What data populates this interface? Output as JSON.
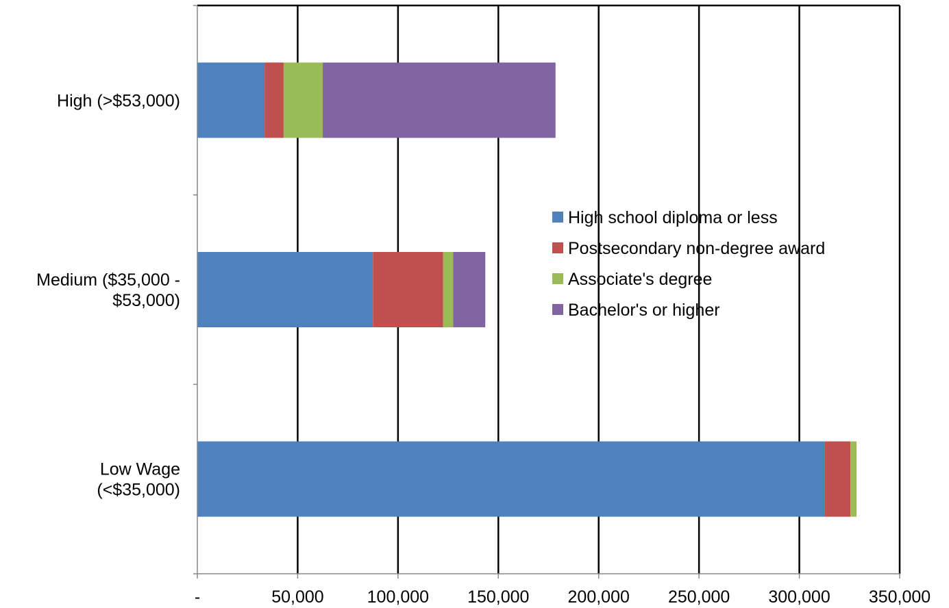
{
  "chart_data": {
    "type": "bar",
    "orientation": "horizontal",
    "stacked": true,
    "categories": [
      [
        "High (>$53,000)"
      ],
      [
        "Medium ($35,000 -",
        "$53,000)"
      ],
      [
        "Low Wage",
        "(<$35,000)"
      ]
    ],
    "series": [
      {
        "name": "High school diploma or less",
        "color": "#4F81BD",
        "values": [
          33500,
          87500,
          312500
        ]
      },
      {
        "name": "Postsecondary non-degree award",
        "color": "#C0504D",
        "values": [
          9500,
          35000,
          13000
        ]
      },
      {
        "name": "Associate's degree",
        "color": "#9BBB59",
        "values": [
          19500,
          5000,
          3000
        ]
      },
      {
        "name": "Bachelor's or higher",
        "color": "#8064A2",
        "values": [
          116000,
          16000,
          0
        ]
      }
    ],
    "xlim": [
      0,
      350000
    ],
    "xticks": [
      0,
      50000,
      100000,
      150000,
      200000,
      250000,
      300000,
      350000
    ],
    "xtick_labels": [
      "-",
      "50,000",
      "100,000",
      "150,000",
      "200,000",
      "250,000",
      "300,000",
      "350,000"
    ],
    "grid": "vertical",
    "legend_position": "center-right",
    "title": "",
    "xlabel": "",
    "ylabel": ""
  }
}
